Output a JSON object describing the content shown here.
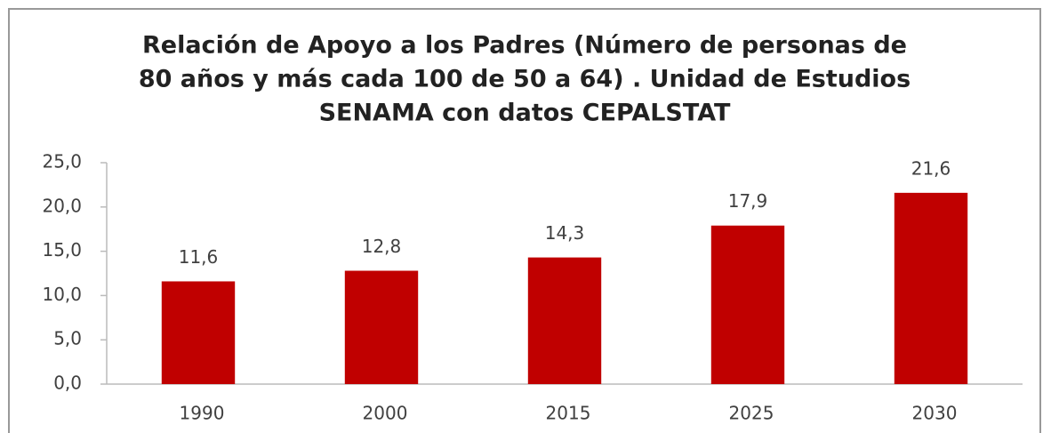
{
  "chart_data": {
    "type": "bar",
    "title": [
      "Relación de Apoyo a los Padres (Número de personas de",
      "80 años y más cada 100 de 50 a 64) . Unidad de Estudios",
      "SENAMA con datos CEPALSTAT"
    ],
    "categories": [
      "1990",
      "2000",
      "2015",
      "2025",
      "2030"
    ],
    "values": [
      11.6,
      12.8,
      14.3,
      17.9,
      21.6
    ],
    "value_labels": [
      "11,6",
      "12,8",
      "14,3",
      "17,9",
      "21,6"
    ],
    "color": "#c00000",
    "ylim": [
      0,
      25
    ],
    "yticks": [
      {
        "value": 0,
        "label": "0,0"
      },
      {
        "value": 5,
        "label": "5,0"
      },
      {
        "value": 10,
        "label": "10,0"
      },
      {
        "value": 15,
        "label": "15,0"
      },
      {
        "value": 20,
        "label": "20,0"
      },
      {
        "value": 25,
        "label": "25,0"
      }
    ],
    "grid": false
  }
}
